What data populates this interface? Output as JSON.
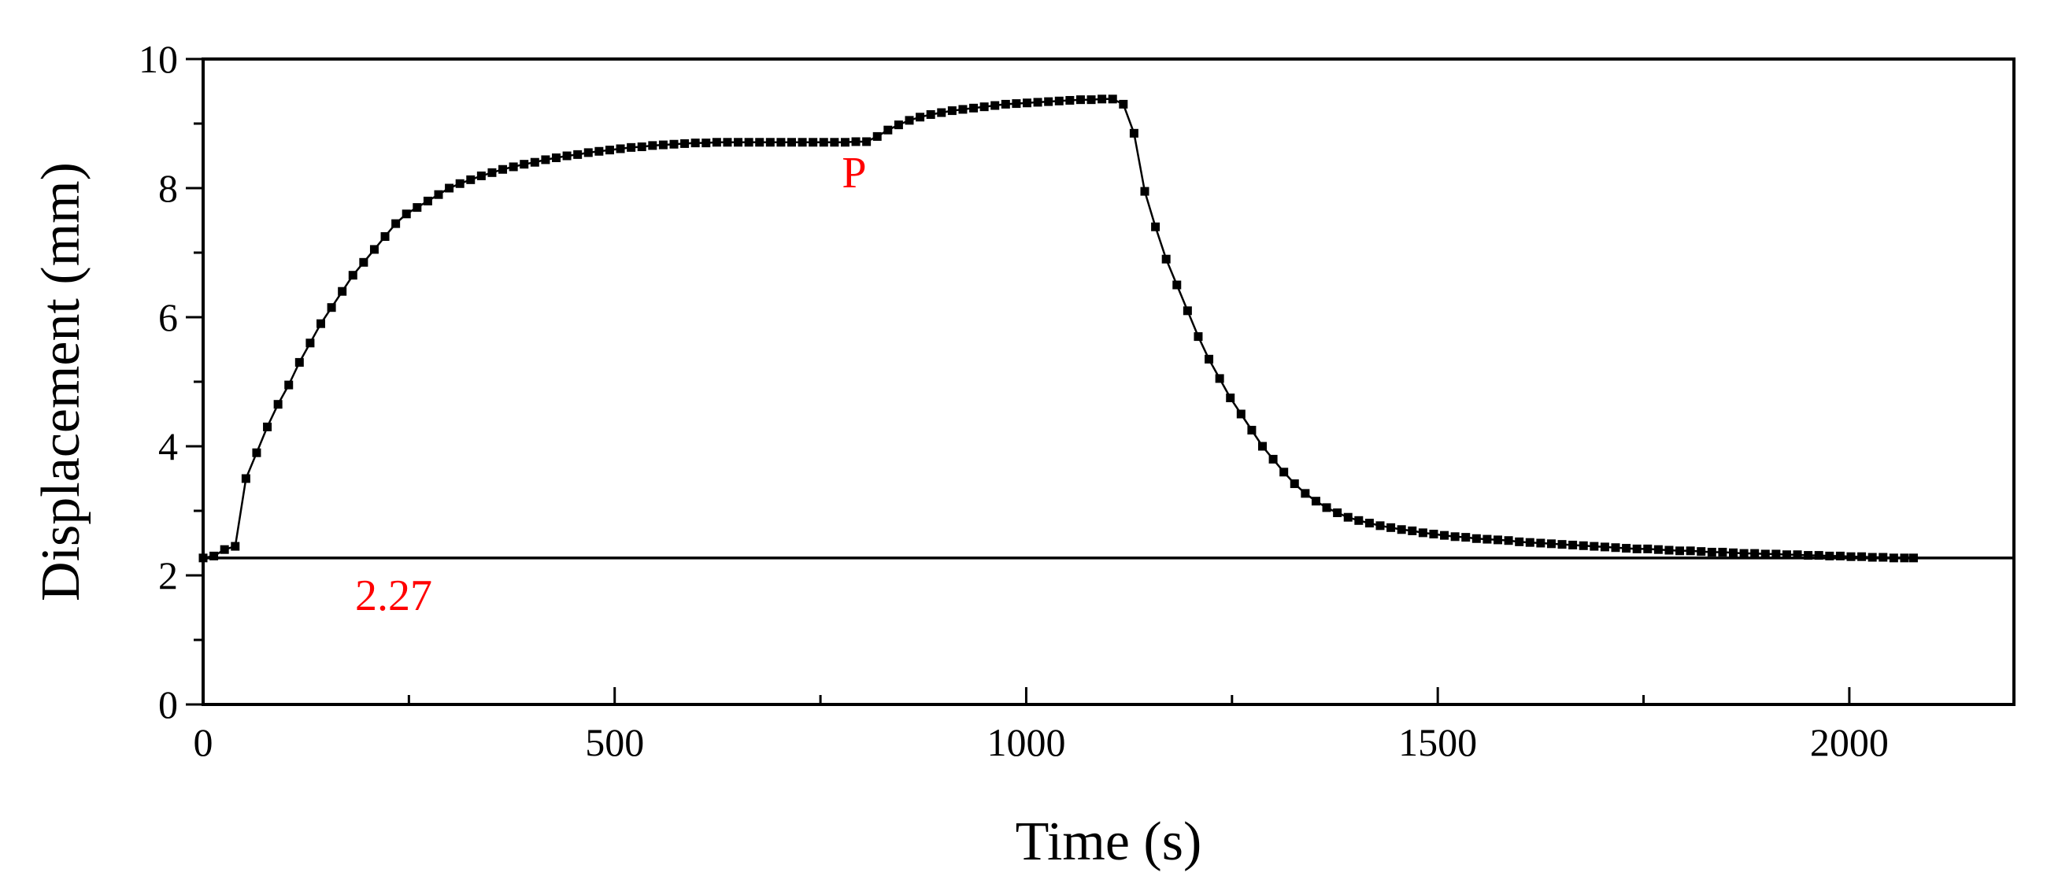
{
  "chart_data": {
    "type": "line",
    "title": "",
    "xlabel": "Time (s)",
    "ylabel": "Displacement (mm)",
    "xlim": [
      0,
      2200
    ],
    "ylim": [
      0,
      10
    ],
    "xticks": [
      0,
      500,
      1000,
      1500,
      2000
    ],
    "yticks": [
      0,
      2,
      4,
      6,
      8,
      10
    ],
    "xtick_labels": [
      "0",
      "500",
      "1000",
      "1500",
      "2000"
    ],
    "ytick_labels": [
      "0",
      "2",
      "4",
      "6",
      "8",
      "10"
    ],
    "grid": false,
    "legend": null,
    "reference_line": {
      "y": 2.27,
      "label": "2.27"
    },
    "annotations": [
      {
        "text": "P",
        "x": 812,
        "y": 8.72
      },
      {
        "text": "2.27",
        "x": 232,
        "y": 2.27
      }
    ],
    "series": [
      {
        "name": "Displacement",
        "marker": "square",
        "color": "#000000",
        "points": [
          [
            0,
            2.27
          ],
          [
            13,
            2.3
          ],
          [
            26,
            2.4
          ],
          [
            39,
            2.45
          ],
          [
            52,
            3.5
          ],
          [
            65,
            3.9
          ],
          [
            78,
            4.3
          ],
          [
            91,
            4.65
          ],
          [
            104,
            4.95
          ],
          [
            117,
            5.3
          ],
          [
            130,
            5.6
          ],
          [
            143,
            5.9
          ],
          [
            156,
            6.15
          ],
          [
            169,
            6.4
          ],
          [
            182,
            6.65
          ],
          [
            195,
            6.85
          ],
          [
            208,
            7.05
          ],
          [
            221,
            7.25
          ],
          [
            234,
            7.45
          ],
          [
            247,
            7.6
          ],
          [
            260,
            7.7
          ],
          [
            273,
            7.8
          ],
          [
            286,
            7.9
          ],
          [
            299,
            8.0
          ],
          [
            312,
            8.07
          ],
          [
            325,
            8.13
          ],
          [
            338,
            8.19
          ],
          [
            351,
            8.24
          ],
          [
            364,
            8.29
          ],
          [
            377,
            8.33
          ],
          [
            390,
            8.37
          ],
          [
            403,
            8.4
          ],
          [
            416,
            8.44
          ],
          [
            429,
            8.47
          ],
          [
            442,
            8.5
          ],
          [
            455,
            8.52
          ],
          [
            468,
            8.55
          ],
          [
            481,
            8.57
          ],
          [
            494,
            8.59
          ],
          [
            507,
            8.61
          ],
          [
            520,
            8.63
          ],
          [
            533,
            8.64
          ],
          [
            546,
            8.66
          ],
          [
            559,
            8.67
          ],
          [
            572,
            8.68
          ],
          [
            585,
            8.69
          ],
          [
            598,
            8.7
          ],
          [
            611,
            8.7
          ],
          [
            624,
            8.71
          ],
          [
            637,
            8.71
          ],
          [
            650,
            8.71
          ],
          [
            663,
            8.71
          ],
          [
            676,
            8.71
          ],
          [
            689,
            8.71
          ],
          [
            702,
            8.71
          ],
          [
            715,
            8.71
          ],
          [
            728,
            8.71
          ],
          [
            741,
            8.71
          ],
          [
            754,
            8.71
          ],
          [
            767,
            8.71
          ],
          [
            780,
            8.71
          ],
          [
            793,
            8.72
          ],
          [
            806,
            8.72
          ],
          [
            819,
            8.8
          ],
          [
            832,
            8.9
          ],
          [
            845,
            8.98
          ],
          [
            858,
            9.05
          ],
          [
            871,
            9.1
          ],
          [
            884,
            9.14
          ],
          [
            897,
            9.17
          ],
          [
            910,
            9.2
          ],
          [
            923,
            9.22
          ],
          [
            936,
            9.24
          ],
          [
            949,
            9.26
          ],
          [
            962,
            9.28
          ],
          [
            975,
            9.3
          ],
          [
            988,
            9.31
          ],
          [
            1001,
            9.32
          ],
          [
            1014,
            9.33
          ],
          [
            1027,
            9.34
          ],
          [
            1040,
            9.35
          ],
          [
            1053,
            9.36
          ],
          [
            1066,
            9.37
          ],
          [
            1079,
            9.37
          ],
          [
            1092,
            9.38
          ],
          [
            1105,
            9.38
          ],
          [
            1118,
            9.3
          ],
          [
            1131,
            8.85
          ],
          [
            1144,
            7.95
          ],
          [
            1157,
            7.4
          ],
          [
            1170,
            6.9
          ],
          [
            1183,
            6.5
          ],
          [
            1196,
            6.1
          ],
          [
            1209,
            5.7
          ],
          [
            1222,
            5.35
          ],
          [
            1235,
            5.05
          ],
          [
            1248,
            4.75
          ],
          [
            1261,
            4.5
          ],
          [
            1274,
            4.25
          ],
          [
            1287,
            4.0
          ],
          [
            1300,
            3.8
          ],
          [
            1313,
            3.6
          ],
          [
            1326,
            3.42
          ],
          [
            1339,
            3.27
          ],
          [
            1352,
            3.15
          ],
          [
            1365,
            3.05
          ],
          [
            1378,
            2.97
          ],
          [
            1391,
            2.9
          ],
          [
            1404,
            2.85
          ],
          [
            1417,
            2.81
          ],
          [
            1430,
            2.77
          ],
          [
            1443,
            2.74
          ],
          [
            1456,
            2.71
          ],
          [
            1469,
            2.69
          ],
          [
            1482,
            2.66
          ],
          [
            1495,
            2.64
          ],
          [
            1508,
            2.62
          ],
          [
            1521,
            2.6
          ],
          [
            1534,
            2.59
          ],
          [
            1547,
            2.57
          ],
          [
            1560,
            2.56
          ],
          [
            1573,
            2.55
          ],
          [
            1586,
            2.54
          ],
          [
            1599,
            2.52
          ],
          [
            1612,
            2.51
          ],
          [
            1625,
            2.5
          ],
          [
            1638,
            2.49
          ],
          [
            1651,
            2.48
          ],
          [
            1664,
            2.47
          ],
          [
            1677,
            2.46
          ],
          [
            1690,
            2.45
          ],
          [
            1703,
            2.44
          ],
          [
            1716,
            2.43
          ],
          [
            1729,
            2.42
          ],
          [
            1742,
            2.41
          ],
          [
            1755,
            2.41
          ],
          [
            1768,
            2.4
          ],
          [
            1781,
            2.39
          ],
          [
            1794,
            2.38
          ],
          [
            1807,
            2.38
          ],
          [
            1820,
            2.37
          ],
          [
            1833,
            2.36
          ],
          [
            1846,
            2.36
          ],
          [
            1859,
            2.35
          ],
          [
            1872,
            2.34
          ],
          [
            1885,
            2.34
          ],
          [
            1898,
            2.33
          ],
          [
            1911,
            2.33
          ],
          [
            1924,
            2.32
          ],
          [
            1937,
            2.32
          ],
          [
            1950,
            2.31
          ],
          [
            1963,
            2.31
          ],
          [
            1976,
            2.3
          ],
          [
            1989,
            2.3
          ],
          [
            2002,
            2.29
          ],
          [
            2015,
            2.29
          ],
          [
            2028,
            2.28
          ],
          [
            2041,
            2.28
          ],
          [
            2054,
            2.27
          ],
          [
            2067,
            2.27
          ],
          [
            2078,
            2.27
          ]
        ]
      }
    ]
  }
}
